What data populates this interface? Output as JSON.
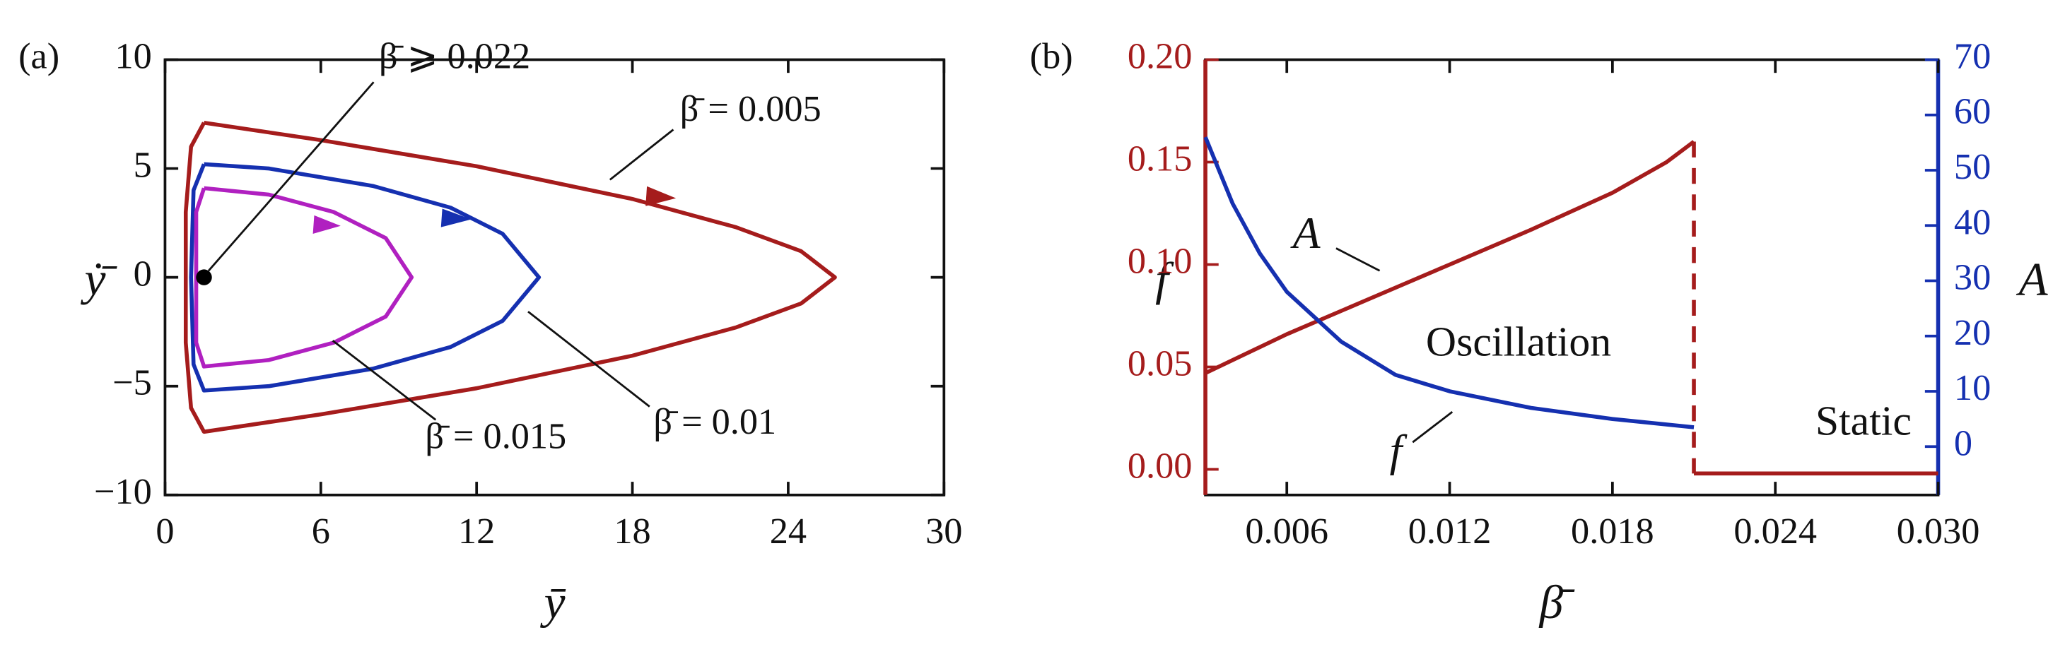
{
  "chart_data": [
    {
      "type": "line",
      "label": "(a)",
      "xlabel": "ȳ",
      "ylabel": "ẏ̄",
      "xlim": [
        0,
        30
      ],
      "xticks": [
        0,
        6,
        12,
        18,
        24,
        30
      ],
      "ylim": [
        -10,
        10
      ],
      "yticks": [
        {
          "value": -10,
          "label": "−10"
        },
        {
          "value": -5,
          "label": "−5"
        },
        0,
        5,
        10
      ],
      "series": [
        {
          "name": "β̄ = 0.005",
          "color": "#a51c1c",
          "x": [
            1.5,
            6,
            12,
            18,
            22,
            24.5,
            25.8,
            24.5,
            22,
            18,
            12,
            6,
            1.5,
            1,
            0.8,
            0.8,
            0.8,
            1,
            1.5
          ],
          "values": [
            7.1,
            6.3,
            5.1,
            3.6,
            2.3,
            1.2,
            0,
            -1.2,
            -2.3,
            -3.6,
            -5.1,
            -6.3,
            -7.1,
            -6,
            -3,
            0,
            3,
            6,
            7.1
          ]
        },
        {
          "name": "β̄ = 0.01",
          "color": "#1530b0",
          "x": [
            1.5,
            4,
            8,
            11,
            13,
            14.4,
            13,
            11,
            8,
            4,
            1.5,
            1.1,
            1,
            1.1,
            1.5
          ],
          "values": [
            5.2,
            5,
            4.2,
            3.2,
            2,
            0,
            -2,
            -3.2,
            -4.2,
            -5,
            -5.2,
            -4,
            0,
            4,
            5.2
          ]
        },
        {
          "name": "β̄ = 0.015",
          "color": "#b020c0",
          "x": [
            1.5,
            4,
            6.5,
            8.5,
            9.5,
            8.5,
            6.5,
            4,
            1.5,
            1.2,
            1.2,
            1.2,
            1.5
          ],
          "values": [
            4.1,
            3.8,
            3,
            1.8,
            0,
            -1.8,
            -3,
            -3.8,
            -4.1,
            -3,
            0,
            3,
            4.1
          ]
        },
        {
          "name": "β̄ ⩾ 0.022",
          "color": "#000000",
          "x": [
            1.5
          ],
          "values": [
            0
          ]
        }
      ]
    },
    {
      "type": "line",
      "label": "(b)",
      "xlabel": "β̄",
      "ylabel": "f",
      "y2label": "A",
      "ycolor": "#a51c1c",
      "y2color": "#1530b0",
      "gap_style": "dashed",
      "annotations": [
        "Oscillation",
        "Static"
      ],
      "xlim": [
        0.003,
        0.03
      ],
      "xticks": [
        0.006,
        0.012,
        0.018,
        0.024,
        {
          "value": 0.03,
          "label": "0.030"
        }
      ],
      "ylim": [
        -0.0125,
        0.2
      ],
      "yticks": [
        {
          "value": 0,
          "label": "0.00"
        },
        0.05,
        {
          "value": 0.1,
          "label": "0.10"
        },
        0.15,
        {
          "value": 0.2,
          "label": "0.20"
        }
      ],
      "y2lim": [
        -8.75,
        70
      ],
      "y2ticks": [
        0,
        10,
        20,
        30,
        40,
        50,
        60,
        70
      ],
      "series": [
        {
          "name": "A",
          "color": "#a51c1c",
          "x": [
            0.003,
            0.006,
            0.009,
            0.012,
            0.015,
            0.018,
            0.02,
            0.021,
            0.021,
            0.021,
            0.024,
            0.027,
            0.03
          ],
          "values": [
            0.047,
            0.066,
            0.083,
            0.1,
            0.117,
            0.135,
            0.15,
            0.16,
            null,
            -0.002,
            -0.002,
            -0.002,
            -0.002
          ]
        },
        {
          "name": "f",
          "color": "#1530b0",
          "axis": "y2",
          "x": [
            0.003,
            0.004,
            0.005,
            0.006,
            0.008,
            0.01,
            0.012,
            0.015,
            0.018,
            0.021
          ],
          "values": [
            56,
            44,
            35,
            28,
            19,
            13,
            10,
            7,
            5,
            3.5
          ]
        }
      ]
    }
  ]
}
